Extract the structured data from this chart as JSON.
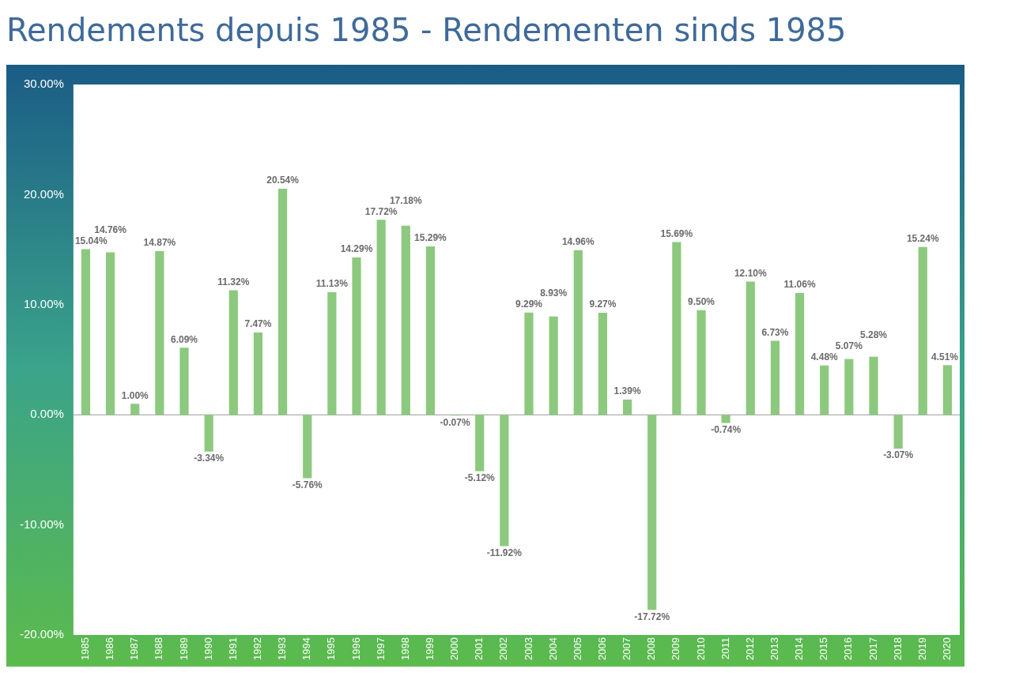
{
  "chart_data": {
    "type": "bar",
    "title": "Rendements depuis 1985 - Rendementen sinds 1985",
    "categories": [
      "1985",
      "1986",
      "1987",
      "1988",
      "1989",
      "1990",
      "1991",
      "1992",
      "1993",
      "1994",
      "1995",
      "1996",
      "1997",
      "1998",
      "1999",
      "2000",
      "2001",
      "2002",
      "2003",
      "2004",
      "2005",
      "2006",
      "2007",
      "2008",
      "2009",
      "2010",
      "2011",
      "2012",
      "2013",
      "2014",
      "2015",
      "2016",
      "2017",
      "2018",
      "2019",
      "2020"
    ],
    "values": [
      15.04,
      14.76,
      1.0,
      14.87,
      6.09,
      -3.34,
      11.32,
      7.47,
      20.54,
      -5.76,
      11.13,
      14.29,
      17.72,
      17.18,
      15.29,
      -0.07,
      -5.12,
      -11.92,
      9.29,
      8.93,
      14.96,
      9.27,
      1.39,
      -17.72,
      15.69,
      9.5,
      -0.74,
      12.1,
      6.73,
      11.06,
      4.48,
      5.07,
      5.28,
      -3.07,
      15.24,
      4.51
    ],
    "value_labels": [
      "15.04%",
      "14.76%",
      "1.00%",
      "14.87%",
      "6.09%",
      "-3.34%",
      "11.32%",
      "7.47%",
      "20.54%",
      "-5.76%",
      "11.13%",
      "14.29%",
      "17.72%",
      "17.18%",
      "15.29%",
      "-0.07%",
      "-5.12%",
      "-11.92%",
      "9.29%",
      "8.93%",
      "14.96%",
      "9.27%",
      "1.39%",
      "-17.72%",
      "15.69%",
      "9.50%",
      "-0.74%",
      "12.10%",
      "6.73%",
      "11.06%",
      "4.48%",
      "5.07%",
      "5.28%",
      "-3.07%",
      "15.24%",
      "4.51%"
    ],
    "color": "#8cc97e",
    "ylim": [
      -20,
      30
    ],
    "yticks": [
      {
        "value": -20,
        "label": "-20.00%"
      },
      {
        "value": -10,
        "label": "-10.00%"
      },
      {
        "value": 0,
        "label": "0.00%"
      },
      {
        "value": 10,
        "label": "10.00%"
      },
      {
        "value": 20,
        "label": "20.00%"
      },
      {
        "value": 30,
        "label": "30.00%"
      }
    ],
    "ref_lines": [
      {
        "axis": "y",
        "value": 0,
        "color": "#999999"
      }
    ],
    "grid": false,
    "legend": false
  }
}
